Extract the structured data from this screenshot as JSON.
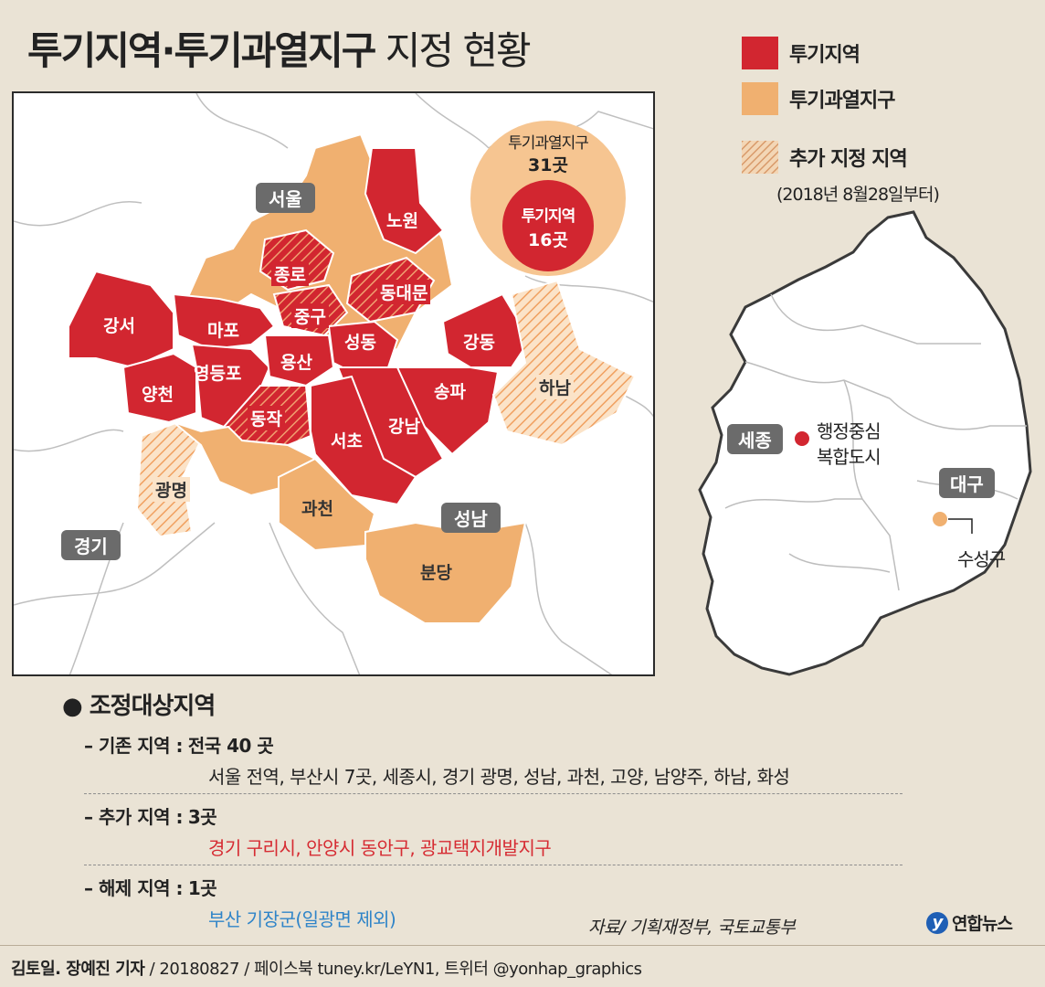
{
  "title": {
    "bold": "투기지역·투기과열지구",
    "light": "지정 현황"
  },
  "legend": {
    "items": [
      {
        "label": "투기지역",
        "color": "#d22630"
      },
      {
        "label": "투기과열지구",
        "color": "#f0b070"
      },
      {
        "label": "추가 지정 지역",
        "sublabel": "(2018년 8월28일부터)",
        "pattern": "hatched"
      }
    ]
  },
  "colors": {
    "speculative_area": "#d22630",
    "overheated_district": "#f0b070",
    "badge": "#6b6b6b"
  },
  "map": {
    "region_badges": [
      "서울",
      "성남",
      "경기"
    ],
    "districts": {
      "speculative": [
        "노원",
        "강서",
        "마포",
        "양천",
        "영등포",
        "용산",
        "성동",
        "강동",
        "송파",
        "강남",
        "서초"
      ],
      "speculative_added": [
        "종로",
        "중구",
        "동대문",
        "동작"
      ],
      "overheated_added": [
        "광명",
        "하남"
      ],
      "overheated": [
        "과천",
        "분당"
      ]
    },
    "counts_circle": {
      "outer_label": "투기과열지구",
      "outer_value": "31곳",
      "inner_label": "투기지역",
      "inner_value": "16곳"
    }
  },
  "korea_map": {
    "badges": [
      "세종",
      "대구"
    ],
    "markers": [
      {
        "label_line1": "행정중심",
        "label_line2": "복합도시",
        "color": "#d22630"
      },
      {
        "label_line1": "수성구",
        "color": "#f0b070"
      }
    ]
  },
  "adjustment": {
    "title": "조정대상지역",
    "rows": [
      {
        "label": "– 기존 지역 :",
        "value": "전국 40 곳",
        "detail": "서울 전역, 부산시 7곳, 세종시, 경기 광명, 성남, 과천, 고양, 남양주, 하남, 화성",
        "detail_color": "black"
      },
      {
        "label": "– 추가 지역 :",
        "value": "3곳",
        "detail": "경기 구리시, 안양시 동안구, 광교택지개발지구",
        "detail_color": "red"
      },
      {
        "label": "– 해제 지역 :",
        "value": "1곳",
        "detail": "부산 기장군(일광면 제외)",
        "detail_color": "blue"
      }
    ]
  },
  "source": "자료/ 기획재정부, 국토교통부",
  "logo": "연합뉴스",
  "credit": {
    "author": "김토일. 장예진 기자",
    "rest": " / 20180827 / 페이스북 tuney.kr/LeYN1, 트위터 @yonhap_graphics"
  }
}
